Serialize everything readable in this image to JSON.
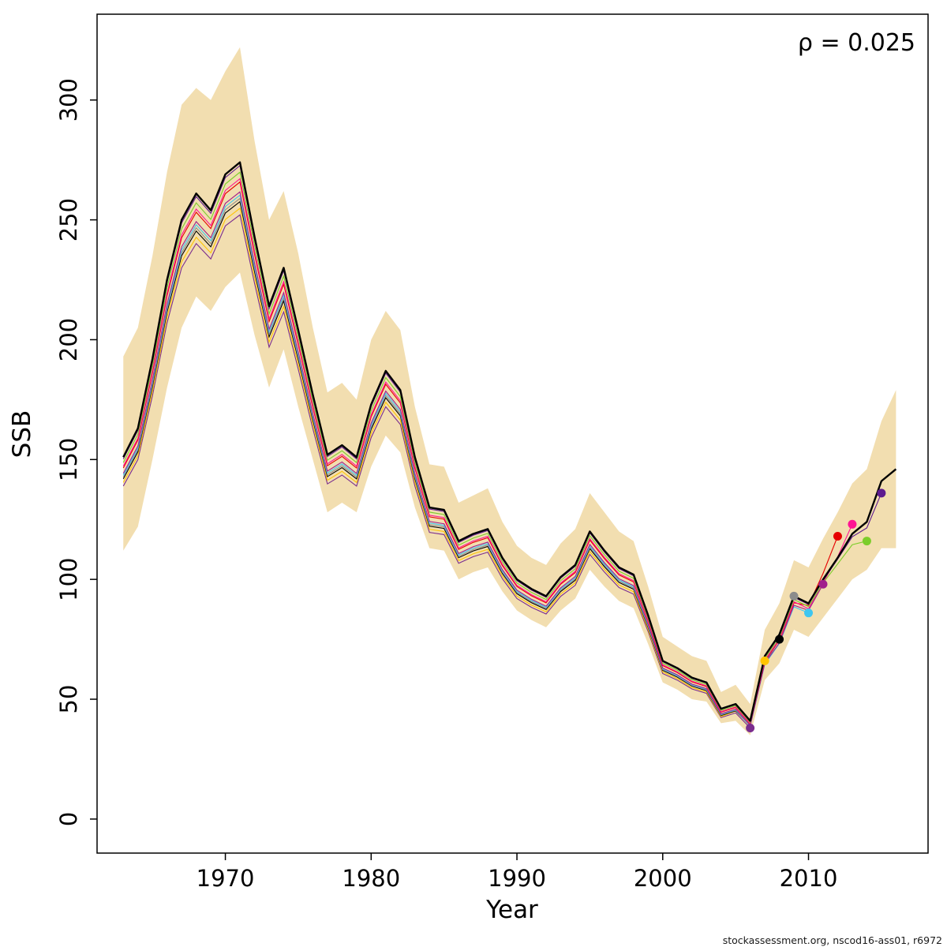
{
  "annotation": {
    "rho_label": "ρ = 0.025"
  },
  "footer": {
    "credit": "stockassessment.org, nscod16-ass01, r6972"
  },
  "chart_data": {
    "type": "line",
    "title": "",
    "xlabel": "Year",
    "ylabel": "SSB",
    "legend_position": "none",
    "grid": false,
    "xlim": [
      1961.2,
      2018.2
    ],
    "ylim": [
      -14.2,
      335.8
    ],
    "x_ticks": [
      1970,
      1980,
      1990,
      2000,
      2010
    ],
    "y_ticks": [
      0,
      50,
      100,
      150,
      200,
      250,
      300
    ],
    "start_year": 1963,
    "band": {
      "name": "confidence-band",
      "color": "#F2DEB0",
      "upper": [
        193,
        205,
        235,
        270,
        298,
        305,
        300,
        312,
        322,
        283,
        250,
        262,
        236,
        205,
        178,
        182,
        175,
        200,
        212,
        204,
        172,
        148,
        147,
        132,
        135,
        138,
        124,
        114,
        109,
        106,
        115,
        121,
        136,
        128,
        120,
        116,
        97,
        76,
        72,
        68,
        66,
        53,
        56,
        48,
        79,
        90,
        108,
        105,
        117,
        128,
        140,
        146,
        166,
        179
      ],
      "lower": [
        112,
        122,
        150,
        180,
        205,
        218,
        212,
        222,
        228,
        202,
        180,
        196,
        172,
        150,
        128,
        132,
        128,
        147,
        160,
        153,
        130,
        113,
        112,
        100,
        103,
        105,
        95,
        87,
        83,
        80,
        87,
        92,
        104,
        97,
        91,
        88,
        73,
        57,
        54,
        50,
        49,
        40,
        41,
        35,
        58,
        65,
        79,
        76,
        84,
        92,
        100,
        104,
        113,
        113
      ]
    },
    "main_series": {
      "name": "current-assessment",
      "color": "#000000",
      "values": [
        151,
        163,
        192,
        225,
        250,
        261,
        254,
        269,
        274,
        243,
        214,
        230,
        204,
        177,
        152,
        156,
        151,
        173,
        187,
        179,
        151,
        130,
        129,
        116,
        119,
        121,
        109,
        100,
        96,
        93,
        101,
        106,
        120,
        112,
        105,
        102,
        85,
        66,
        63,
        59,
        57,
        46,
        48,
        41,
        68,
        77,
        93,
        90,
        100,
        109,
        119,
        124,
        141,
        146
      ]
    },
    "retro_peels": [
      {
        "name": "peel-2006",
        "end_year": 2006,
        "end_value": 38,
        "scale": 0.92,
        "color": "#7B2D8E"
      },
      {
        "name": "peel-2007",
        "end_year": 2007,
        "end_value": 66,
        "scale": 0.93,
        "color": "#FFC400"
      },
      {
        "name": "peel-2008",
        "end_year": 2008,
        "end_value": 75,
        "scale": 0.94,
        "color": "#000000"
      },
      {
        "name": "peel-2009",
        "end_year": 2009,
        "end_value": 93,
        "scale": 0.945,
        "color": "#8C8C8C"
      },
      {
        "name": "peel-2010",
        "end_year": 2010,
        "end_value": 86,
        "scale": 0.95,
        "color": "#3EC6F0"
      },
      {
        "name": "peel-2011",
        "end_year": 2011,
        "end_value": 98,
        "scale": 0.955,
        "color": "#A11E8C"
      },
      {
        "name": "peel-2012",
        "end_year": 2012,
        "end_value": 118,
        "scale": 0.97,
        "color": "#E60000"
      },
      {
        "name": "peel-2013",
        "end_year": 2013,
        "end_value": 123,
        "scale": 0.975,
        "color": "#FF1493"
      },
      {
        "name": "peel-2014",
        "end_year": 2014,
        "end_value": 116,
        "scale": 0.985,
        "color": "#7CCD2B"
      },
      {
        "name": "peel-2015",
        "end_year": 2015,
        "end_value": 136,
        "scale": 0.995,
        "color": "#5E1B8F"
      }
    ]
  }
}
